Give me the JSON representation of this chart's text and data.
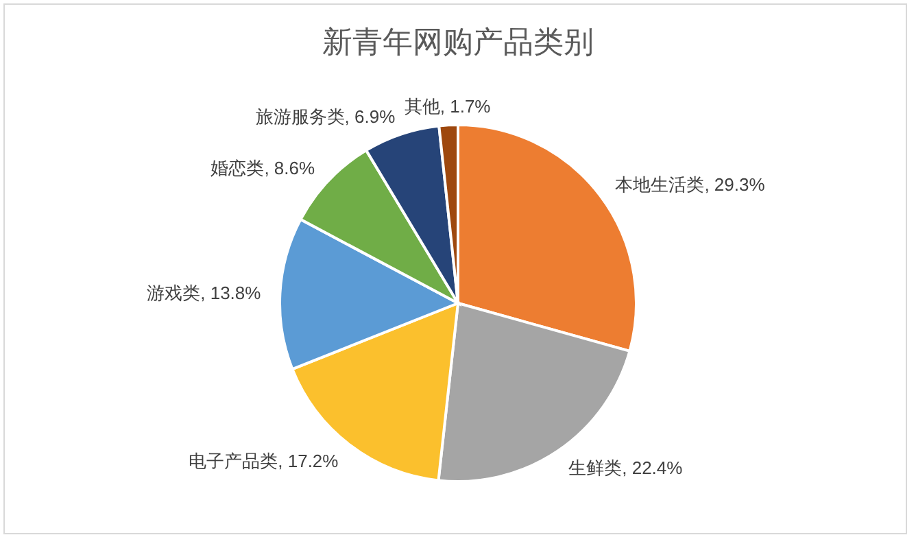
{
  "chart_data": {
    "type": "pie",
    "title": "新青年网购产品类别",
    "categories": [
      "本地生活类",
      "生鲜类",
      "电子产品类",
      "游戏类",
      "婚恋类",
      "旅游服务类",
      "其他"
    ],
    "values": [
      29.3,
      22.4,
      17.2,
      13.8,
      8.6,
      6.9,
      1.7
    ],
    "value_labels": [
      "29.3%",
      "22.4%",
      "17.2%",
      "13.8%",
      "8.6%",
      "6.9%",
      "1.7%"
    ],
    "colors": [
      "#ed7d31",
      "#a5a5a5",
      "#fbc02d",
      "#5b9bd5",
      "#70ad47",
      "#264478",
      "#9e480e"
    ],
    "legend": false
  }
}
